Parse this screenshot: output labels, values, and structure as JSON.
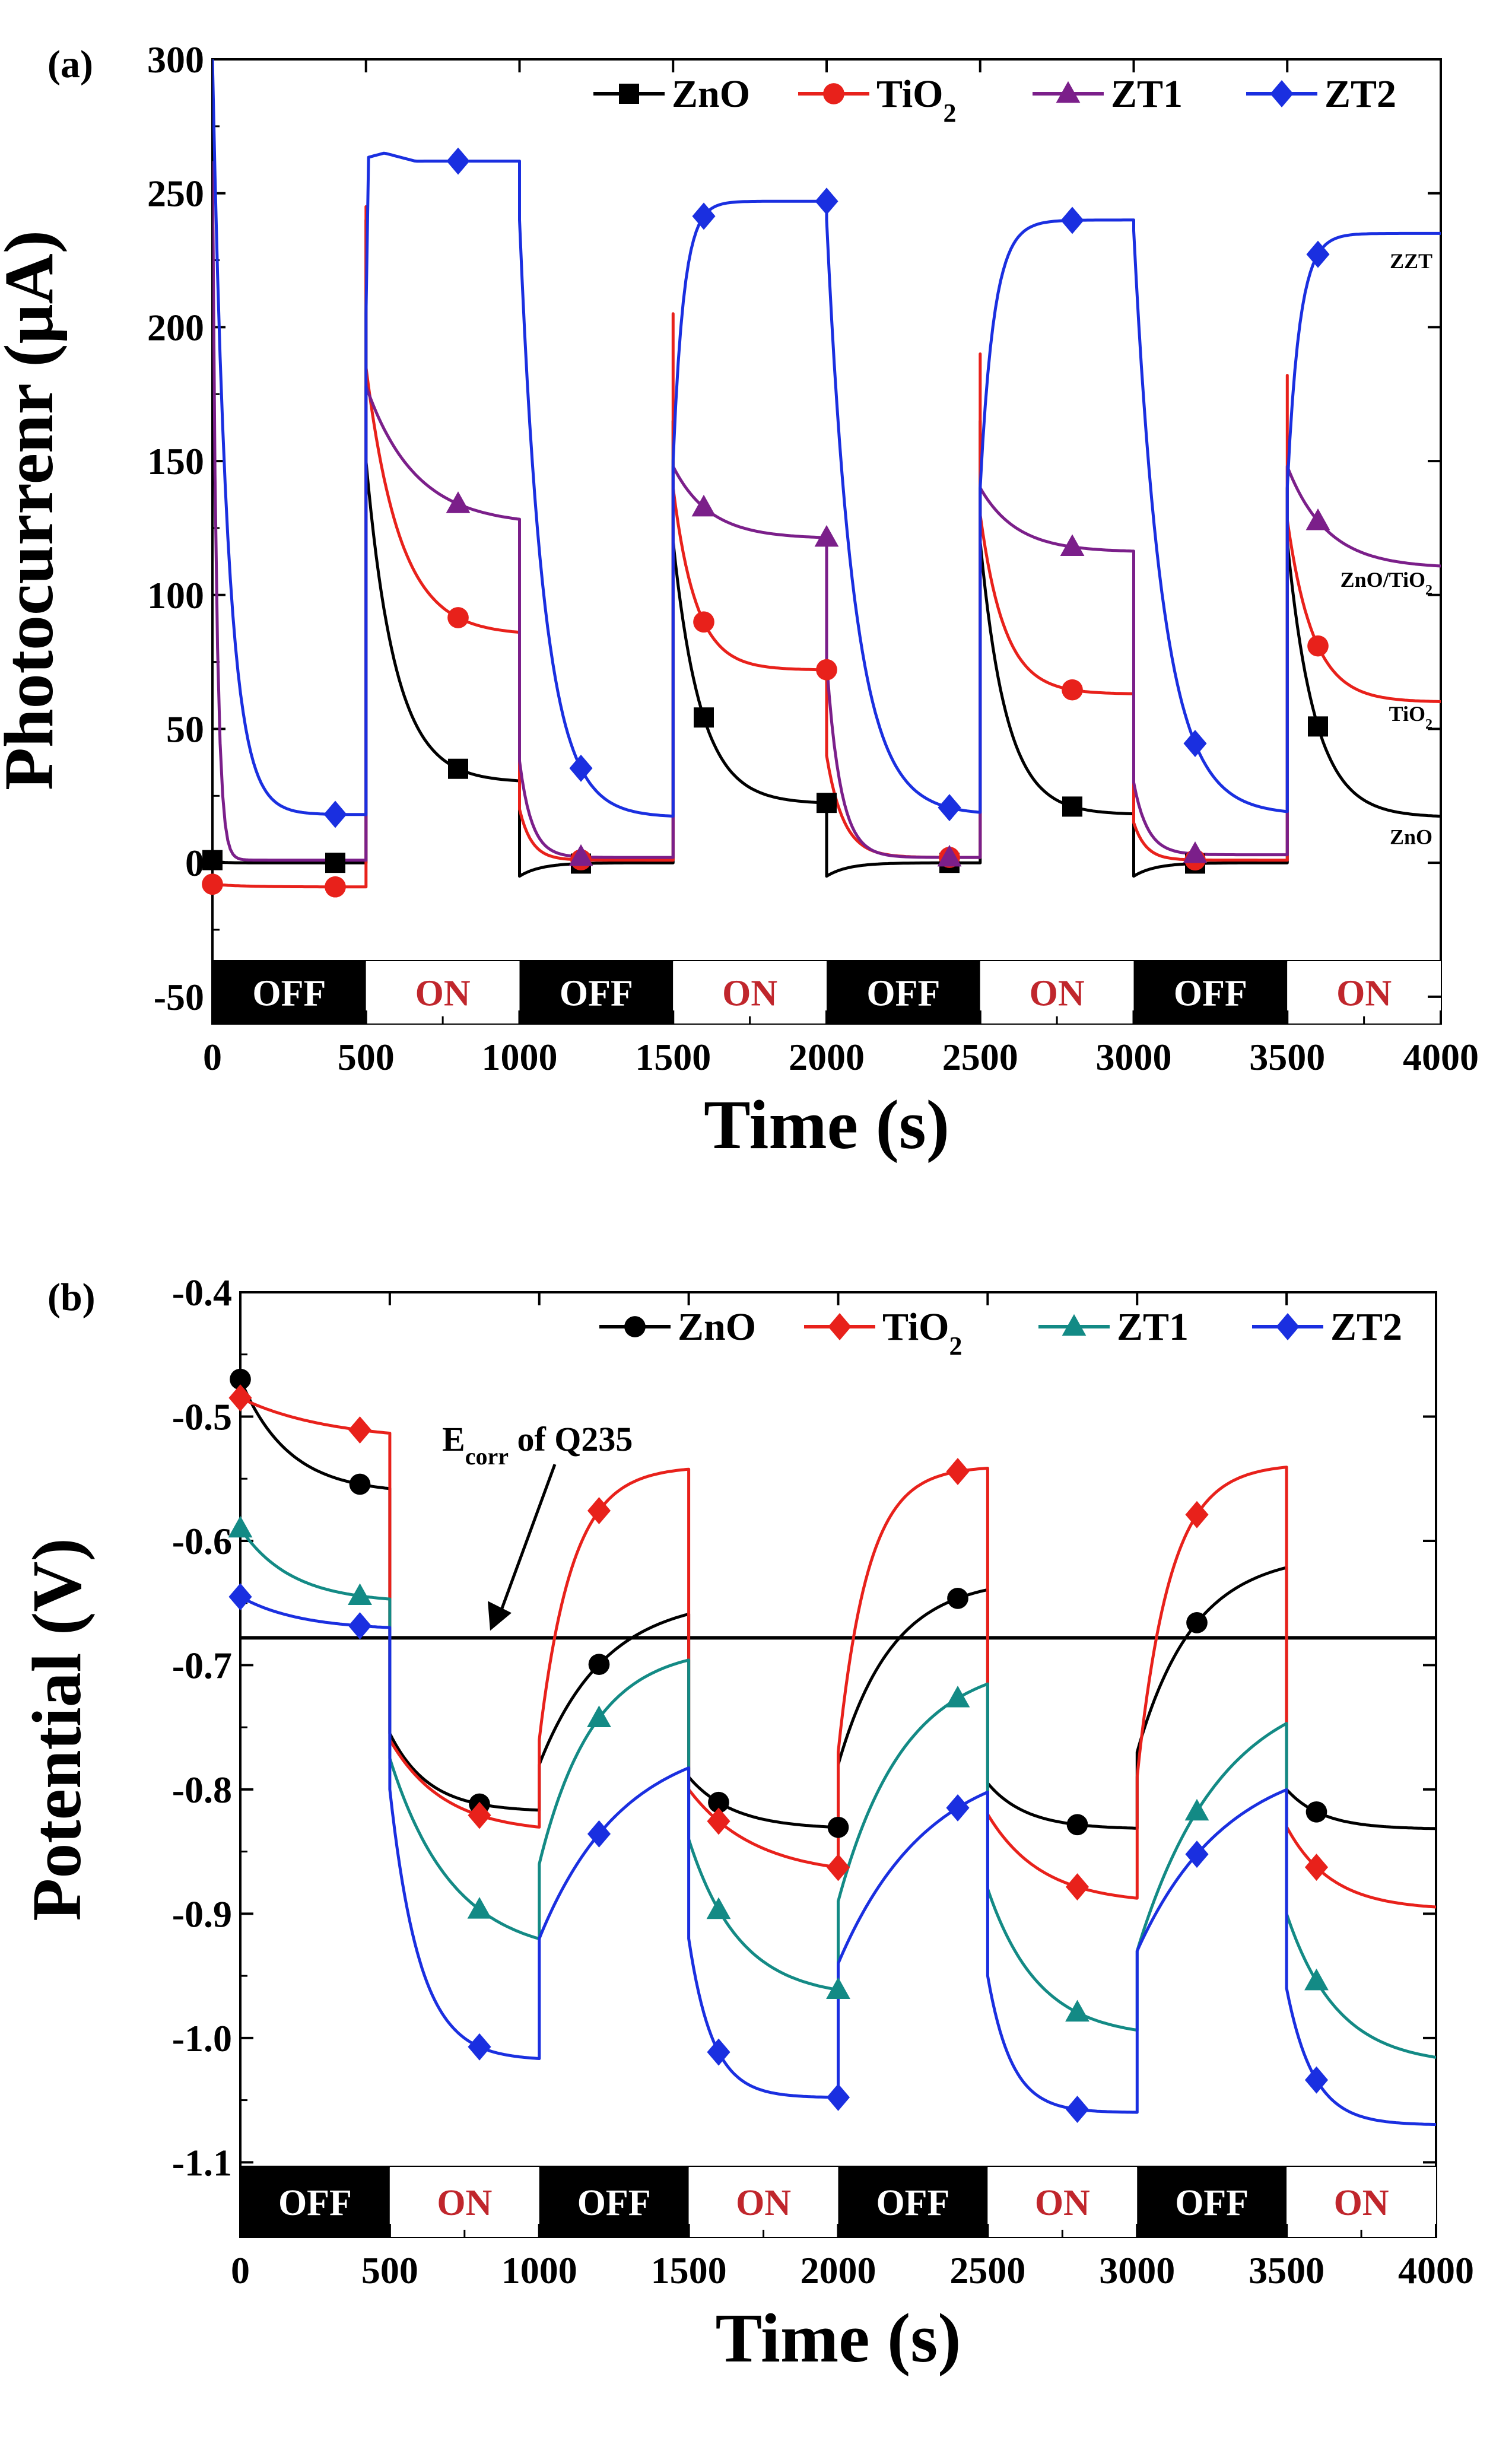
{
  "chart_data": [
    {
      "panel_label": "(a)",
      "type": "line",
      "xlabel": "Time (s)",
      "ylabel": "Photocurrenr (μA)",
      "xlim": [
        0,
        4000
      ],
      "ylim": [
        -60,
        300
      ],
      "x_ticks": [
        "0",
        "500",
        "1000",
        "1500",
        "2000",
        "2500",
        "3000",
        "3500",
        "4000"
      ],
      "y_ticks": [
        "-50",
        "0",
        "50",
        "100",
        "150",
        "200",
        "250",
        "300"
      ],
      "y_tick_values": [
        -50,
        0,
        50,
        100,
        150,
        200,
        250,
        300
      ],
      "legend": {
        "position": "top-right"
      },
      "periods": [
        {
          "label": "OFF",
          "start": 0,
          "end": 500,
          "state": "off"
        },
        {
          "label": "ON",
          "start": 500,
          "end": 1000,
          "state": "on"
        },
        {
          "label": "OFF",
          "start": 1000,
          "end": 1500,
          "state": "off"
        },
        {
          "label": "ON",
          "start": 1500,
          "end": 2000,
          "state": "on"
        },
        {
          "label": "OFF",
          "start": 2000,
          "end": 2500,
          "state": "off"
        },
        {
          "label": "ON",
          "start": 2500,
          "end": 3000,
          "state": "on"
        },
        {
          "label": "OFF",
          "start": 3000,
          "end": 3500,
          "state": "off"
        },
        {
          "label": "ON",
          "start": 3500,
          "end": 4000,
          "state": "on"
        }
      ],
      "side_labels": [
        {
          "text": "ZZT",
          "y": 222
        },
        {
          "text": "ZnO/TiO",
          "sub": "2",
          "y": 103
        },
        {
          "text": "TiO",
          "sub": "2",
          "y": 53
        },
        {
          "text": "ZnO",
          "y": 7
        }
      ],
      "series": [
        {
          "name": "ZnO",
          "sub": "",
          "color": "#000000",
          "marker": "square",
          "markers_x": [
            0,
            400,
            800,
            1200,
            1600,
            2000,
            2400,
            2800,
            3200,
            3600
          ],
          "cycles": [
            {
              "t0": 0,
              "t1": 500,
              "start": 1,
              "end": 0,
              "tau": 20,
              "spike": null
            },
            {
              "t0": 500,
              "t1": 1000,
              "start": 150,
              "end": 30,
              "tau": 95,
              "spike": 240
            },
            {
              "t0": 1000,
              "t1": 1500,
              "start": -5,
              "end": 0,
              "tau": 70,
              "spike": null
            },
            {
              "t0": 1500,
              "t1": 2000,
              "start": 120,
              "end": 22,
              "tau": 90,
              "spike": 165
            },
            {
              "t0": 2000,
              "t1": 2500,
              "start": -5,
              "end": 0,
              "tau": 70,
              "spike": null
            },
            {
              "t0": 2500,
              "t1": 3000,
              "start": 120,
              "end": 18,
              "tau": 85,
              "spike": 165
            },
            {
              "t0": 3000,
              "t1": 3500,
              "start": -5,
              "end": 0,
              "tau": 70,
              "spike": null
            },
            {
              "t0": 3500,
              "t1": 4000,
              "start": 120,
              "end": 17,
              "tau": 90,
              "spike": 140
            }
          ]
        },
        {
          "name": "TiO",
          "sub": "2",
          "color": "#e8211b",
          "marker": "circle",
          "markers_x": [
            0,
            400,
            800,
            1200,
            1600,
            2000,
            2400,
            2800,
            3200,
            3600
          ],
          "cycles": [
            {
              "t0": 0,
              "t1": 500,
              "start": -8,
              "end": -9,
              "tau": 100,
              "spike": null
            },
            {
              "t0": 500,
              "t1": 1000,
              "start": 185,
              "end": 85,
              "tau": 110,
              "spike": 245
            },
            {
              "t0": 1000,
              "t1": 1500,
              "start": 20,
              "end": 1,
              "tau": 40,
              "spike": null
            },
            {
              "t0": 1500,
              "t1": 2000,
              "start": 140,
              "end": 72,
              "tau": 75,
              "spike": 205
            },
            {
              "t0": 2000,
              "t1": 2500,
              "start": 40,
              "end": 2,
              "tau": 55,
              "spike": null
            },
            {
              "t0": 2500,
              "t1": 3000,
              "start": 130,
              "end": 63,
              "tau": 80,
              "spike": 190
            },
            {
              "t0": 3000,
              "t1": 3500,
              "start": 15,
              "end": 1,
              "tau": 40,
              "spike": null
            },
            {
              "t0": 3500,
              "t1": 4000,
              "start": 128,
              "end": 60,
              "tau": 85,
              "spike": 182
            }
          ]
        },
        {
          "name": "ZT1",
          "sub": "",
          "color": "#7b1f8a",
          "marker": "triangle",
          "markers_x": [
            800,
            1200,
            1600,
            2000,
            2400,
            2800,
            3200,
            3600
          ],
          "cycles": [
            {
              "t0": 0,
              "t1": 500,
              "start": 262,
              "end": 1,
              "tau": 14,
              "spike": null
            },
            {
              "t0": 500,
              "t1": 1000,
              "start": 178,
              "end": 126,
              "tau": 160,
              "spike": null
            },
            {
              "t0": 1000,
              "t1": 1500,
              "start": 38,
              "end": 2,
              "tau": 40,
              "spike": null
            },
            {
              "t0": 1500,
              "t1": 2000,
              "start": 148,
              "end": 121,
              "tau": 120,
              "spike": null
            },
            {
              "t0": 2000,
              "t1": 2500,
              "start": 75,
              "end": 2,
              "tau": 45,
              "spike": null
            },
            {
              "t0": 2500,
              "t1": 3000,
              "start": 140,
              "end": 116,
              "tau": 120,
              "spike": null
            },
            {
              "t0": 3000,
              "t1": 3500,
              "start": 30,
              "end": 3,
              "tau": 45,
              "spike": null
            },
            {
              "t0": 3500,
              "t1": 4000,
              "start": 148,
              "end": 110,
              "tau": 130,
              "spike": null
            }
          ]
        },
        {
          "name": "ZT2",
          "sub": "",
          "color": "#1a2fe0",
          "marker": "diamond",
          "markers_x": [
            400,
            800,
            1200,
            1600,
            2000,
            2400,
            2800,
            3200,
            3600
          ],
          "cycles": [
            {
              "t0": 0,
              "t1": 500,
              "start": 300,
              "end": 18,
              "tau": 50,
              "spike": null
            },
            {
              "t0": 500,
              "t1": 1000,
              "start": 205,
              "end": 262,
              "tau": 20,
              "spike": null,
              "bump": 265
            },
            {
              "t0": 1000,
              "t1": 1500,
              "start": 240,
              "end": 17,
              "tau": 80,
              "spike": null
            },
            {
              "t0": 1500,
              "t1": 2000,
              "start": 150,
              "end": 247,
              "tau": 35,
              "spike": null
            },
            {
              "t0": 2000,
              "t1": 2500,
              "start": 240,
              "end": 18,
              "tau": 90,
              "spike": null
            },
            {
              "t0": 2500,
              "t1": 3000,
              "start": 140,
              "end": 240,
              "tau": 45,
              "spike": null
            },
            {
              "t0": 3000,
              "t1": 3500,
              "start": 236,
              "end": 18,
              "tau": 95,
              "spike": null
            },
            {
              "t0": 3500,
              "t1": 4000,
              "start": 140,
              "end": 235,
              "tau": 40,
              "spike": null
            }
          ]
        }
      ]
    },
    {
      "panel_label": "(b)",
      "type": "line",
      "xlabel": "Time (s)",
      "ylabel": "Potential (V)",
      "xlim": [
        0,
        4000
      ],
      "ylim": [
        -1.16,
        -0.4
      ],
      "x_ticks": [
        "0",
        "500",
        "1000",
        "1500",
        "2000",
        "2500",
        "3000",
        "3500",
        "4000"
      ],
      "y_ticks": [
        "-0.4",
        "-0.5",
        "-0.6",
        "-0.7",
        "-0.8",
        "-0.9",
        "-1.0",
        "-1.1"
      ],
      "y_tick_values": [
        -0.4,
        -0.5,
        -0.6,
        -0.7,
        -0.8,
        -0.9,
        -1.0,
        -1.1
      ],
      "legend": {
        "position": "top-right"
      },
      "reference_line": {
        "y": -0.678,
        "label": "E",
        "label_sub": "corr",
        "label_rest": " of Q235"
      },
      "periods": [
        {
          "label": "OFF",
          "start": 0,
          "end": 500,
          "state": "off"
        },
        {
          "label": "ON",
          "start": 500,
          "end": 1000,
          "state": "on"
        },
        {
          "label": "OFF",
          "start": 1000,
          "end": 1500,
          "state": "off"
        },
        {
          "label": "ON",
          "start": 1500,
          "end": 2000,
          "state": "on"
        },
        {
          "label": "OFF",
          "start": 2000,
          "end": 2500,
          "state": "off"
        },
        {
          "label": "ON",
          "start": 2500,
          "end": 3000,
          "state": "on"
        },
        {
          "label": "OFF",
          "start": 3000,
          "end": 3500,
          "state": "off"
        },
        {
          "label": "ON",
          "start": 3500,
          "end": 4000,
          "state": "on"
        }
      ],
      "series": [
        {
          "name": "ZnO",
          "sub": "",
          "color": "#000000",
          "marker": "circle",
          "markers_x": [
            0,
            400,
            800,
            1200,
            1600,
            2000,
            2400,
            2800,
            3200,
            3600
          ],
          "cycles": [
            {
              "t0": 0,
              "t1": 500,
              "start": -0.47,
              "end": -0.562,
              "tau": 160
            },
            {
              "t0": 500,
              "t1": 1000,
              "start": -0.755,
              "end": -0.818,
              "tau": 130
            },
            {
              "t0": 1000,
              "t1": 1500,
              "start": -0.78,
              "end": -0.645,
              "tau": 220
            },
            {
              "t0": 1500,
              "t1": 2000,
              "start": -0.79,
              "end": -0.832,
              "tau": 150
            },
            {
              "t0": 2000,
              "t1": 2500,
              "start": -0.78,
              "end": -0.63,
              "tau": 180
            },
            {
              "t0": 2500,
              "t1": 3000,
              "start": -0.795,
              "end": -0.832,
              "tau": 130
            },
            {
              "t0": 3000,
              "t1": 3500,
              "start": -0.77,
              "end": -0.61,
              "tau": 190
            },
            {
              "t0": 3500,
              "t1": 4000,
              "start": -0.8,
              "end": -0.832,
              "tau": 120
            }
          ]
        },
        {
          "name": "TiO",
          "sub": "2",
          "color": "#e8211b",
          "marker": "diamond",
          "markers_x": [
            0,
            400,
            800,
            1200,
            1600,
            2000,
            2400,
            2800,
            3200,
            3600
          ],
          "cycles": [
            {
              "t0": 0,
              "t1": 500,
              "start": -0.485,
              "end": -0.52,
              "tau": 300
            },
            {
              "t0": 500,
              "t1": 1000,
              "start": -0.76,
              "end": -0.835,
              "tau": 180
            },
            {
              "t0": 1000,
              "t1": 1500,
              "start": -0.76,
              "end": -0.54,
              "tau": 110
            },
            {
              "t0": 1500,
              "t1": 2000,
              "start": -0.8,
              "end": -0.87,
              "tau": 220
            },
            {
              "t0": 2000,
              "t1": 2500,
              "start": -0.77,
              "end": -0.54,
              "tau": 100
            },
            {
              "t0": 2500,
              "t1": 3000,
              "start": -0.82,
              "end": -0.892,
              "tau": 180
            },
            {
              "t0": 3000,
              "t1": 3500,
              "start": -0.79,
              "end": -0.538,
              "tau": 110
            },
            {
              "t0": 3500,
              "t1": 4000,
              "start": -0.83,
              "end": -0.897,
              "tau": 150
            }
          ]
        },
        {
          "name": "ZT1",
          "sub": "",
          "color": "#138a85",
          "marker": "triangle",
          "markers_x": [
            0,
            400,
            800,
            1200,
            1600,
            2000,
            2400,
            2800,
            3200,
            3600
          ],
          "cycles": [
            {
              "t0": 0,
              "t1": 500,
              "start": -0.59,
              "end": -0.65,
              "tau": 170
            },
            {
              "t0": 500,
              "t1": 1000,
              "start": -0.775,
              "end": -0.935,
              "tau": 210
            },
            {
              "t0": 1000,
              "t1": 1500,
              "start": -0.86,
              "end": -0.685,
              "tau": 180
            },
            {
              "t0": 1500,
              "t1": 2000,
              "start": -0.84,
              "end": -0.968,
              "tau": 170
            },
            {
              "t0": 2000,
              "t1": 2500,
              "start": -0.89,
              "end": -0.695,
              "tau": 220
            },
            {
              "t0": 2500,
              "t1": 3000,
              "start": -0.88,
              "end": -1.0,
              "tau": 170
            },
            {
              "t0": 3000,
              "t1": 3500,
              "start": -0.93,
              "end": -0.71,
              "tau": 280
            },
            {
              "t0": 3500,
              "t1": 4000,
              "start": -0.9,
              "end": -1.022,
              "tau": 170
            }
          ]
        },
        {
          "name": "ZT2",
          "sub": "",
          "color": "#1a2fe0",
          "marker": "diamond",
          "markers_x": [
            0,
            400,
            800,
            1200,
            1600,
            2000,
            2400,
            2800,
            3200,
            3600
          ],
          "cycles": [
            {
              "t0": 0,
              "t1": 500,
              "start": -0.645,
              "end": -0.672,
              "tau": 200
            },
            {
              "t0": 500,
              "t1": 1000,
              "start": -0.8,
              "end": -1.018,
              "tau": 100
            },
            {
              "t0": 1000,
              "t1": 1500,
              "start": -0.92,
              "end": -0.755,
              "tau": 280
            },
            {
              "t0": 1500,
              "t1": 2000,
              "start": -0.92,
              "end": -1.048,
              "tau": 80
            },
            {
              "t0": 2000,
              "t1": 2500,
              "start": -0.94,
              "end": -0.77,
              "tau": 300
            },
            {
              "t0": 2500,
              "t1": 3000,
              "start": -0.95,
              "end": -1.06,
              "tau": 80
            },
            {
              "t0": 3000,
              "t1": 3500,
              "start": -0.93,
              "end": -0.77,
              "tau": 300
            },
            {
              "t0": 3500,
              "t1": 4000,
              "start": -0.96,
              "end": -1.07,
              "tau": 90
            }
          ]
        }
      ]
    }
  ]
}
